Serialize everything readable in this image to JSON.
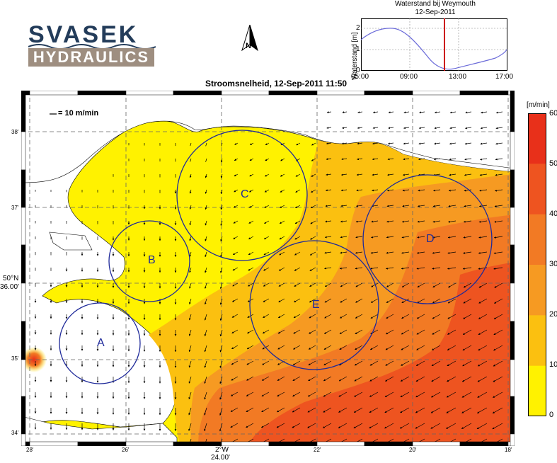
{
  "logo": {
    "line1": "SVASEK",
    "line2": "HYDRAULICS"
  },
  "north_arrow": {
    "label": "N"
  },
  "timeseries": {
    "title": "Waterstand bij Weymouth",
    "subtitle": "12-Sep-2011",
    "ylabel": "Waterstand [m]",
    "yticks": [
      "2",
      "1",
      "0"
    ],
    "xticks": [
      "05:00",
      "09:00",
      "13:00",
      "17:00"
    ],
    "line_color": "#6b6bd9",
    "marker_color": "#cc0000"
  },
  "map": {
    "title": "Stroomsnelheid, 12-Sep-2011 11:50",
    "scale_label": "= 10 m/min",
    "lat_ticks": [
      "38'",
      "37'",
      "35'",
      "34'"
    ],
    "lat_main_label": "50°N",
    "lat_main_sub": "36.00'",
    "lon_ticks": [
      "28'",
      "26'",
      "22'",
      "20'",
      "18'"
    ],
    "lon_main_label": "2°W",
    "lon_main_sub": "24.00'",
    "regions": [
      "A",
      "B",
      "C",
      "D",
      "E"
    ],
    "circle_color": "#1f2a9a",
    "land_color": "#ffffff"
  },
  "colorbar": {
    "unit": "[m/min]",
    "levels": [
      "60",
      "50",
      "40",
      "30",
      "20",
      "10",
      "0"
    ],
    "colors": [
      "#e8301a",
      "#ee5420",
      "#f27a24",
      "#f69a22",
      "#fbc010",
      "#fff200"
    ]
  }
}
